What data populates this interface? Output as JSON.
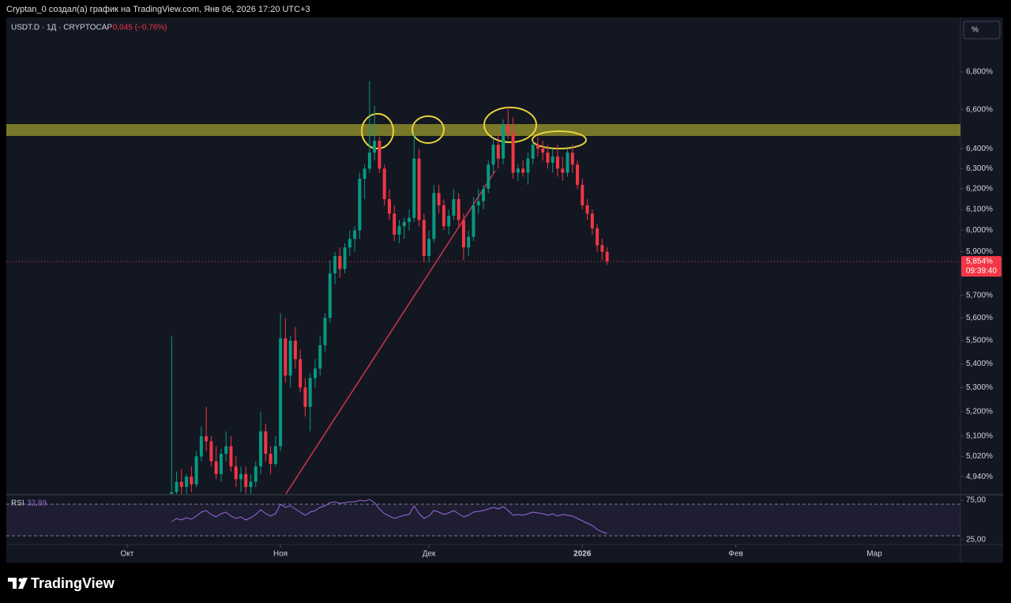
{
  "header": {
    "caption": "Cryptan_0 создал(а) график на TradingView.com, Янв 06, 2026 17:20 UTC+3",
    "brand": "TradingView"
  },
  "chart_data": {
    "type": "candlestick",
    "symbol": "USDT.D · 1Д · CRYPTOCAP",
    "change": "−0,045 (−0,76%)",
    "scale_button": "%",
    "log_scale": true,
    "up_color": "#089981",
    "down_color": "#f23645",
    "x": [
      9,
      10,
      11,
      12,
      13,
      14,
      15,
      16,
      17,
      18,
      19,
      20,
      21,
      22,
      23,
      24,
      25,
      26,
      27,
      28,
      29,
      30,
      31,
      32,
      33,
      34,
      35,
      36,
      37,
      38,
      39,
      40,
      41,
      42,
      43,
      44,
      45,
      46,
      47,
      48,
      49,
      50,
      51,
      52,
      53,
      54,
      55,
      56,
      57,
      58,
      59,
      60,
      61,
      62,
      63,
      64,
      65,
      66,
      67,
      68,
      69,
      70,
      71,
      72,
      73,
      74,
      75,
      76,
      77,
      78,
      79,
      80,
      81,
      82,
      83,
      84,
      85,
      86,
      87,
      88,
      89,
      90,
      91,
      92,
      93,
      94,
      95,
      96,
      97
    ],
    "open": [
      4.8,
      4.88,
      4.92,
      4.9,
      4.94,
      4.91,
      5.02,
      5.1,
      5.08,
      5.0,
      4.95,
      5.03,
      5.06,
      4.98,
      4.93,
      4.95,
      4.9,
      4.92,
      4.98,
      5.12,
      5.03,
      4.99,
      5.06,
      5.51,
      5.35,
      5.5,
      5.42,
      5.3,
      5.22,
      5.34,
      5.38,
      5.48,
      5.6,
      5.8,
      5.88,
      5.82,
      5.92,
      5.96,
      6.0,
      6.25,
      6.3,
      6.38,
      6.44,
      6.3,
      6.15,
      6.08,
      5.98,
      6.02,
      6.04,
      6.06,
      6.35,
      6.05,
      5.88,
      5.96,
      6.18,
      6.12,
      6.02,
      6.07,
      6.15,
      6.05,
      5.92,
      5.97,
      6.12,
      6.14,
      6.2,
      6.32,
      6.42,
      6.35,
      6.52,
      6.48,
      6.28,
      6.3,
      6.28,
      6.35,
      6.42,
      6.4,
      6.38,
      6.33,
      6.36,
      6.3,
      6.28,
      6.38,
      6.32,
      6.22,
      6.12,
      6.08,
      6.01,
      5.93,
      5.9
    ],
    "high": [
      5.52,
      4.96,
      4.97,
      4.95,
      4.98,
      5.04,
      5.14,
      5.22,
      5.1,
      5.06,
      5.05,
      5.12,
      5.1,
      5.02,
      4.98,
      4.98,
      4.95,
      5.0,
      5.2,
      5.15,
      5.06,
      5.1,
      5.62,
      5.6,
      5.52,
      5.56,
      5.46,
      5.34,
      5.36,
      5.42,
      5.52,
      5.62,
      5.86,
      5.9,
      5.92,
      5.94,
      6.0,
      6.02,
      6.28,
      6.32,
      6.75,
      6.62,
      6.46,
      6.32,
      6.2,
      6.12,
      6.05,
      6.06,
      6.1,
      6.48,
      6.4,
      6.08,
      6.0,
      6.22,
      6.22,
      6.15,
      6.1,
      6.2,
      6.18,
      6.08,
      6.0,
      6.16,
      6.2,
      6.22,
      6.34,
      6.45,
      6.48,
      6.55,
      6.62,
      6.56,
      6.32,
      6.34,
      6.38,
      6.44,
      6.46,
      6.44,
      6.42,
      6.4,
      6.42,
      6.36,
      6.4,
      6.42,
      6.34,
      6.25,
      6.15,
      6.1,
      6.03,
      5.96,
      5.92
    ],
    "low": [
      4.7,
      4.86,
      4.86,
      4.86,
      4.88,
      4.9,
      5.0,
      5.04,
      4.98,
      4.93,
      4.92,
      5.0,
      4.96,
      4.9,
      4.88,
      4.86,
      4.86,
      4.9,
      4.95,
      5.0,
      4.95,
      4.98,
      5.04,
      5.32,
      5.3,
      5.38,
      5.28,
      5.18,
      5.12,
      5.3,
      5.35,
      5.45,
      5.58,
      5.75,
      5.78,
      5.8,
      5.88,
      5.9,
      5.96,
      6.15,
      6.28,
      6.34,
      6.28,
      6.12,
      6.05,
      5.95,
      5.94,
      5.96,
      6.0,
      6.04,
      6.02,
      5.85,
      5.85,
      5.94,
      6.08,
      6.0,
      5.98,
      6.05,
      6.02,
      5.86,
      5.88,
      5.95,
      6.08,
      6.1,
      6.18,
      6.28,
      6.3,
      6.32,
      6.45,
      6.25,
      6.24,
      6.26,
      6.22,
      6.32,
      6.36,
      6.34,
      6.3,
      6.28,
      6.26,
      6.24,
      6.26,
      6.28,
      6.2,
      6.1,
      6.05,
      5.98,
      5.9,
      5.86,
      5.84
    ],
    "close": [
      4.88,
      4.92,
      4.9,
      4.94,
      4.91,
      5.02,
      5.1,
      5.08,
      5.0,
      4.95,
      5.03,
      5.06,
      4.98,
      4.93,
      4.95,
      4.9,
      4.92,
      4.98,
      5.12,
      5.03,
      4.99,
      5.06,
      5.51,
      5.35,
      5.5,
      5.42,
      5.3,
      5.22,
      5.34,
      5.38,
      5.48,
      5.6,
      5.8,
      5.88,
      5.82,
      5.92,
      5.96,
      6.0,
      6.25,
      6.3,
      6.38,
      6.44,
      6.3,
      6.15,
      6.08,
      5.98,
      6.02,
      6.04,
      6.06,
      6.35,
      6.05,
      5.88,
      5.96,
      6.18,
      6.12,
      6.02,
      6.07,
      6.15,
      6.05,
      5.92,
      5.97,
      6.12,
      6.14,
      6.2,
      6.32,
      6.42,
      6.35,
      6.52,
      6.48,
      6.28,
      6.3,
      6.28,
      6.35,
      6.42,
      6.4,
      6.38,
      6.33,
      6.36,
      6.3,
      6.28,
      6.38,
      6.32,
      6.22,
      6.12,
      6.08,
      6.01,
      5.93,
      5.9,
      5.854
    ],
    "last_price": {
      "value": 5.854,
      "label": "5,854%"
    },
    "countdown": "09:39:40",
    "xlim": [
      -24.4,
      168.4
    ],
    "xticks": [
      {
        "value": 0,
        "label": "Окт"
      },
      {
        "value": 31,
        "label": "Ноя"
      },
      {
        "value": 61,
        "label": "Дек"
      },
      {
        "value": 92,
        "label": "2026"
      },
      {
        "value": 123,
        "label": "Фев"
      },
      {
        "value": 151,
        "label": "Мар"
      }
    ],
    "ylim": [
      4.873,
      7.099
    ],
    "yticks": [
      {
        "value": 4.94,
        "label": "4,940%"
      },
      {
        "value": 5.02,
        "label": "5,020%"
      },
      {
        "value": 5.1,
        "label": "5,100%"
      },
      {
        "value": 5.2,
        "label": "5,200%"
      },
      {
        "value": 5.3,
        "label": "5,300%"
      },
      {
        "value": 5.4,
        "label": "5,400%"
      },
      {
        "value": 5.5,
        "label": "5,500%"
      },
      {
        "value": 5.6,
        "label": "5,600%"
      },
      {
        "value": 5.7,
        "label": "5,700%"
      },
      {
        "value": 5.9,
        "label": "5,900%"
      },
      {
        "value": 6.0,
        "label": "6,000%"
      },
      {
        "value": 6.1,
        "label": "6,100%"
      },
      {
        "value": 6.2,
        "label": "6,200%"
      },
      {
        "value": 6.3,
        "label": "6,300%"
      },
      {
        "value": 6.4,
        "label": "6,400%"
      },
      {
        "value": 6.6,
        "label": "6,600%"
      },
      {
        "value": 6.8,
        "label": "6,800%"
      }
    ],
    "rsi": {
      "name": "RSI",
      "value_label": "32,89",
      "color": "#9c6ade",
      "values": [
        48,
        52,
        50,
        53,
        51,
        55,
        60,
        62,
        57,
        54,
        58,
        60,
        55,
        52,
        54,
        50,
        53,
        57,
        63,
        58,
        55,
        58,
        70,
        66,
        68,
        64,
        60,
        56,
        60,
        62,
        66,
        68,
        72,
        73,
        71,
        72,
        73,
        73,
        75,
        74,
        76,
        72,
        64,
        58,
        55,
        52,
        54,
        56,
        57,
        68,
        58,
        52,
        55,
        62,
        60,
        57,
        59,
        62,
        58,
        54,
        56,
        60,
        61,
        62,
        64,
        66,
        64,
        67,
        62,
        56,
        57,
        56,
        58,
        60,
        59,
        58,
        56,
        58,
        55,
        57,
        56,
        55,
        52,
        49,
        46,
        43,
        38,
        35,
        32.89
      ],
      "ylim": [
        20,
        80
      ],
      "yticks": [
        {
          "value": 75,
          "label": "75,00"
        },
        {
          "value": 25,
          "label": "25,00"
        }
      ],
      "bands": [
        70,
        30
      ]
    }
  }
}
